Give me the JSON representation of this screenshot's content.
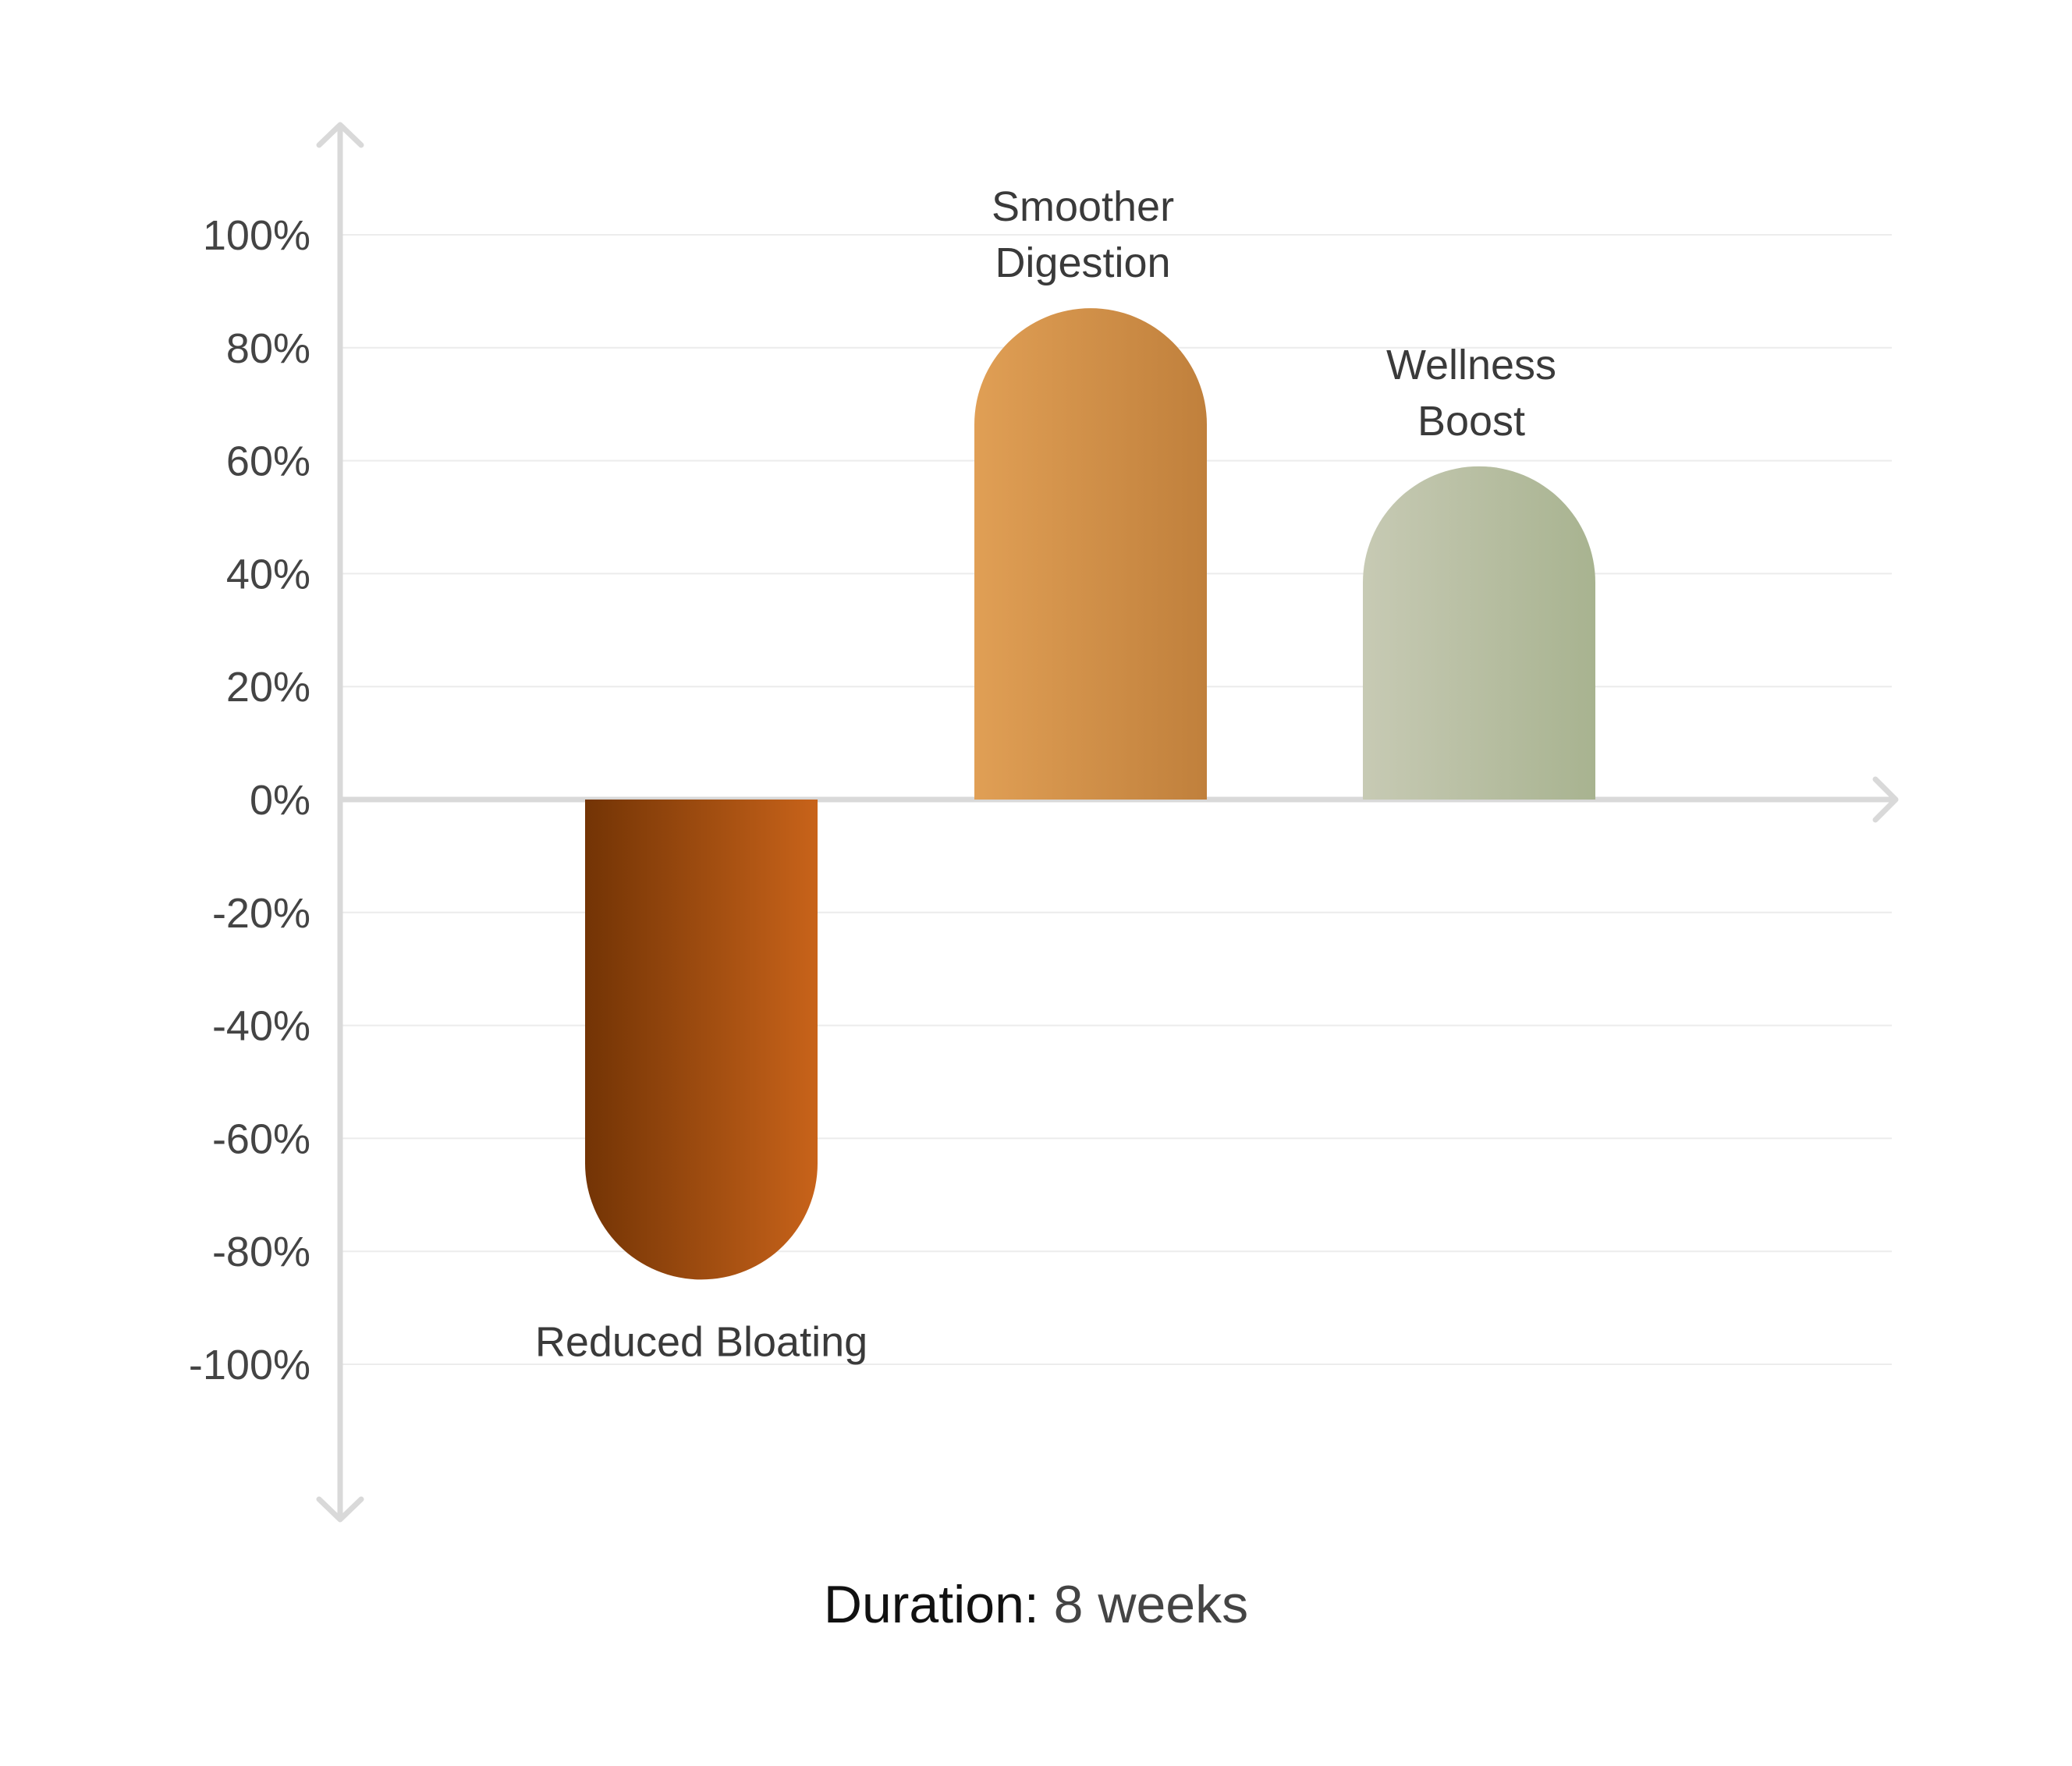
{
  "chart_data": {
    "type": "bar",
    "categories": [
      "Reduced Bloating",
      "Smoother Digestion",
      "Wellness Boost"
    ],
    "label_lines": [
      [
        "Reduced Bloating"
      ],
      [
        "Smoother",
        "Digestion"
      ],
      [
        "Wellness",
        "Boost"
      ]
    ],
    "values": [
      -85,
      87,
      59
    ],
    "unit": "%",
    "ylim": [
      -100,
      100
    ],
    "yticks": [
      100,
      80,
      60,
      40,
      20,
      0,
      -20,
      -40,
      -60,
      -80,
      -100
    ],
    "ytick_labels": [
      "100%",
      "80%",
      "60%",
      "40%",
      "20%",
      "0%",
      "-20%",
      "-40%",
      "-60%",
      "-80%",
      "-100%"
    ],
    "grid": true,
    "colors": [
      [
        "#733405",
        "#c8631a"
      ],
      [
        "#e09f55",
        "#c0803c"
      ],
      [
        "#c7cab4",
        "#a8b390"
      ]
    ],
    "axis_color": "#d9d9d9",
    "grid_color": "#ececec"
  },
  "footer": {
    "label": "Duration:",
    "value": " 8 weeks"
  }
}
